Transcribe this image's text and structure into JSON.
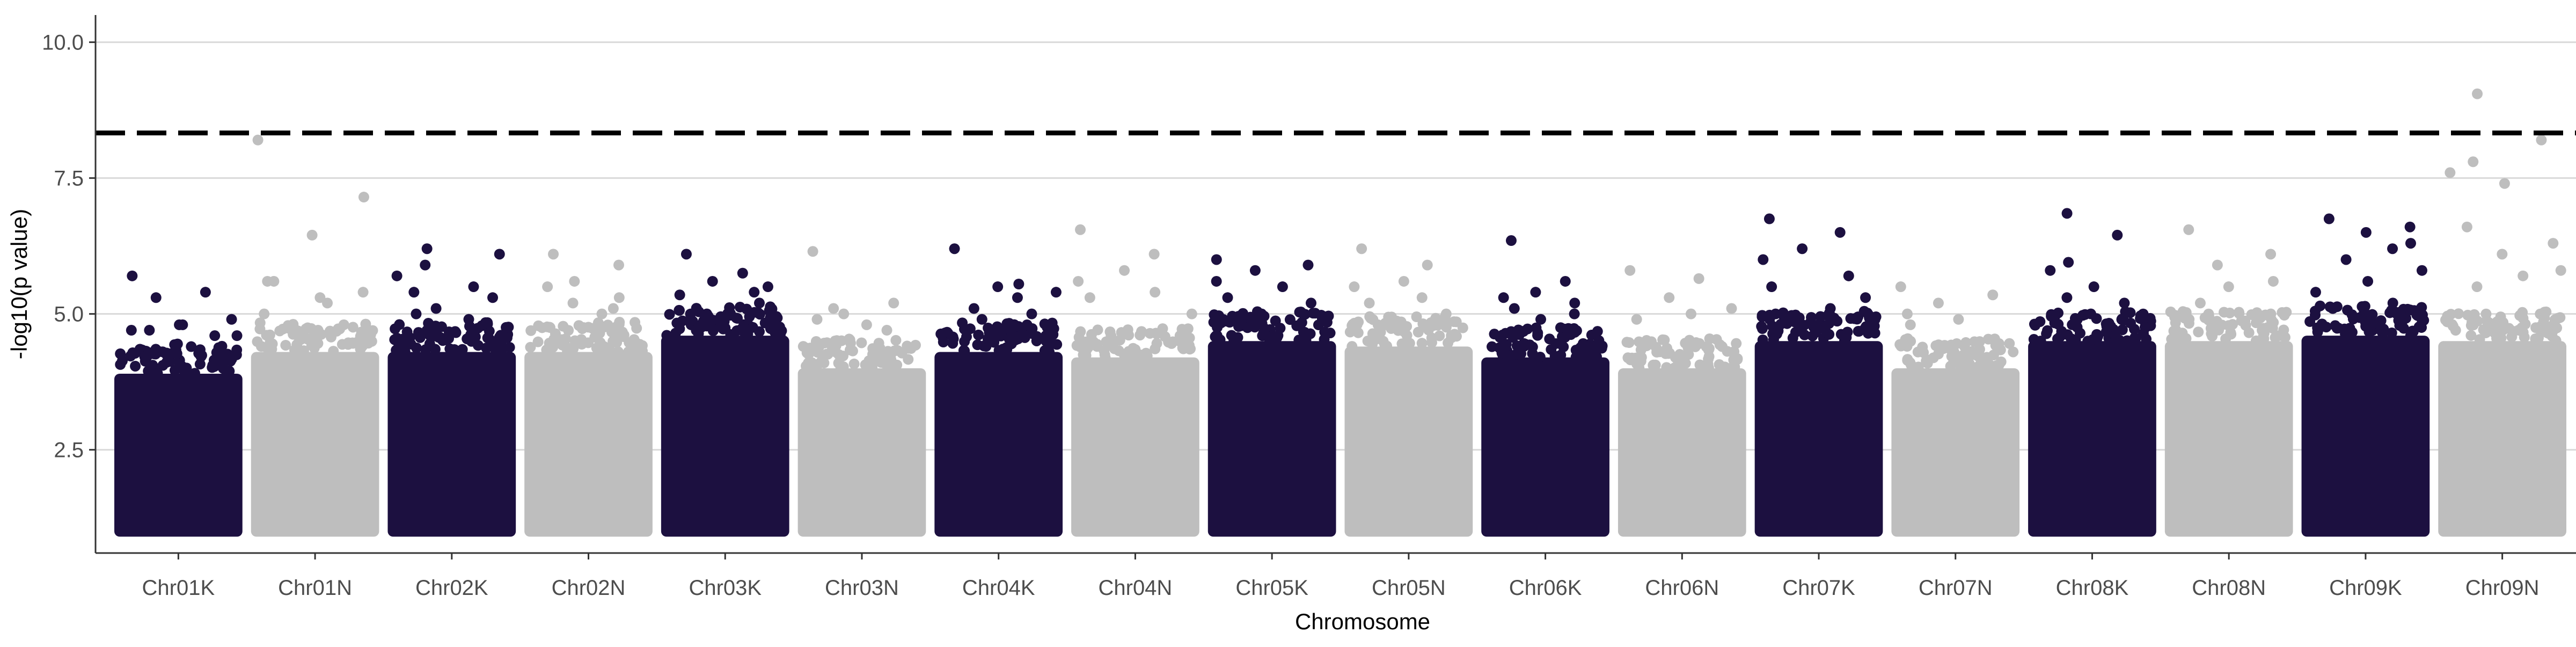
{
  "chart_data": {
    "type": "scatter",
    "subtype": "manhattan",
    "xlabel": "Chromosome",
    "ylabel": "-log10(p value)",
    "yticks": [
      2.5,
      5.0,
      7.5,
      10.0
    ],
    "ylim": [
      0.6,
      10.5
    ],
    "grid": "horizontal-major",
    "legend": "none",
    "threshold": {
      "value": 8.33,
      "style": "dashed",
      "color": "#000000"
    },
    "colors": {
      "odd": "#1c1040",
      "even": "#bebebe",
      "grid": "#d9d9d9",
      "axis": "#333333"
    },
    "categories": [
      "Chr01K",
      "Chr01N",
      "Chr02K",
      "Chr02N",
      "Chr03K",
      "Chr03N",
      "Chr04K",
      "Chr04N",
      "Chr05K",
      "Chr05N",
      "Chr06K",
      "Chr06N",
      "Chr07K",
      "Chr07N",
      "Chr08K",
      "Chr08N",
      "Chr09K",
      "Chr09N"
    ],
    "series": [
      {
        "chromosome": "Chr01K",
        "color": "#1c1040",
        "bulk_top": 3.9,
        "peak_points": [
          5.7,
          5.4,
          5.3,
          4.9,
          4.8,
          4.7,
          4.6,
          4.8,
          4.7,
          4.6
        ]
      },
      {
        "chromosome": "Chr01N",
        "color": "#bebebe",
        "bulk_top": 4.3,
        "peak_points": [
          8.2,
          7.15,
          6.45,
          5.6,
          5.3,
          5.6,
          5.4,
          5.2,
          5.0
        ]
      },
      {
        "chromosome": "Chr02K",
        "color": "#1c1040",
        "bulk_top": 4.3,
        "peak_points": [
          6.2,
          6.1,
          5.9,
          5.7,
          5.5,
          5.4,
          5.3,
          5.1,
          5.0,
          4.9
        ]
      },
      {
        "chromosome": "Chr02N",
        "color": "#bebebe",
        "bulk_top": 4.3,
        "peak_points": [
          6.1,
          5.9,
          5.6,
          5.5,
          5.3,
          5.2,
          5.1,
          5.0
        ]
      },
      {
        "chromosome": "Chr03K",
        "color": "#1c1040",
        "bulk_top": 4.6,
        "peak_points": [
          6.1,
          5.75,
          5.6,
          5.5,
          5.4,
          5.35,
          5.2,
          5.0,
          4.9
        ]
      },
      {
        "chromosome": "Chr03N",
        "color": "#bebebe",
        "bulk_top": 4.0,
        "peak_points": [
          6.15,
          5.2,
          5.1,
          4.9,
          4.8,
          5.0,
          4.7
        ]
      },
      {
        "chromosome": "Chr04K",
        "color": "#1c1040",
        "bulk_top": 4.3,
        "peak_points": [
          6.2,
          5.55,
          5.5,
          5.4,
          5.3,
          5.1,
          5.0,
          4.9
        ]
      },
      {
        "chromosome": "Chr04N",
        "color": "#bebebe",
        "bulk_top": 4.2,
        "peak_points": [
          6.55,
          6.1,
          5.8,
          5.6,
          5.4,
          5.3,
          5.0
        ]
      },
      {
        "chromosome": "Chr05K",
        "color": "#1c1040",
        "bulk_top": 4.5,
        "peak_points": [
          6.0,
          5.9,
          5.8,
          5.6,
          5.5,
          5.3,
          5.2,
          5.0
        ]
      },
      {
        "chromosome": "Chr05N",
        "color": "#bebebe",
        "bulk_top": 4.4,
        "peak_points": [
          6.2,
          5.9,
          5.6,
          5.5,
          5.3,
          5.2,
          5.0
        ]
      },
      {
        "chromosome": "Chr06K",
        "color": "#1c1040",
        "bulk_top": 4.2,
        "peak_points": [
          6.35,
          5.6,
          5.4,
          5.3,
          5.2,
          5.1,
          5.0,
          4.9
        ]
      },
      {
        "chromosome": "Chr06N",
        "color": "#bebebe",
        "bulk_top": 4.0,
        "peak_points": [
          5.8,
          5.65,
          5.3,
          5.1,
          5.0,
          4.9
        ]
      },
      {
        "chromosome": "Chr07K",
        "color": "#1c1040",
        "bulk_top": 4.5,
        "peak_points": [
          6.75,
          6.5,
          6.2,
          6.0,
          5.7,
          5.5,
          5.3,
          5.1,
          5.0
        ]
      },
      {
        "chromosome": "Chr07N",
        "color": "#bebebe",
        "bulk_top": 4.0,
        "peak_points": [
          5.5,
          5.35,
          5.2,
          5.0,
          4.9,
          4.8
        ]
      },
      {
        "chromosome": "Chr08K",
        "color": "#1c1040",
        "bulk_top": 4.5,
        "peak_points": [
          6.85,
          6.45,
          5.95,
          5.8,
          5.5,
          5.3,
          5.2,
          5.0
        ]
      },
      {
        "chromosome": "Chr08N",
        "color": "#bebebe",
        "bulk_top": 4.5,
        "peak_points": [
          6.55,
          6.1,
          5.9,
          5.6,
          5.5,
          5.2,
          5.0
        ]
      },
      {
        "chromosome": "Chr09K",
        "color": "#1c1040",
        "bulk_top": 4.6,
        "peak_points": [
          6.75,
          6.6,
          6.5,
          6.3,
          6.2,
          6.0,
          5.8,
          5.6,
          5.4,
          5.2
        ]
      },
      {
        "chromosome": "Chr09N",
        "color": "#bebebe",
        "bulk_top": 4.5,
        "peak_points": [
          9.05,
          8.2,
          7.8,
          7.6,
          7.4,
          6.6,
          6.3,
          6.1,
          5.8,
          5.7,
          5.5
        ]
      }
    ]
  }
}
